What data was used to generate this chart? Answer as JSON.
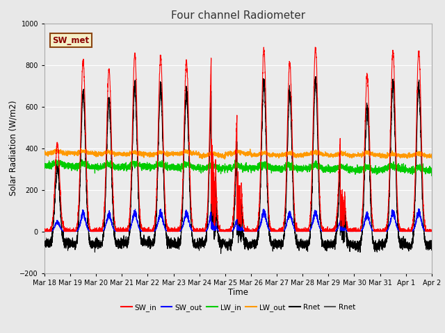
{
  "title": "Four channel Radiometer",
  "xlabel": "Time",
  "ylabel": "Solar Radiation (W/m2)",
  "ylim": [
    -200,
    1000
  ],
  "background_color": "#e8e8e8",
  "plot_bg_color": "#ebebeb",
  "legend_label": "SW_met",
  "legend_box_color": "#f5f0c8",
  "legend_box_edge": "#8B4513",
  "x_tick_labels": [
    "Mar 18",
    "Mar 19",
    "Mar 20",
    "Mar 21",
    "Mar 22",
    "Mar 23",
    "Mar 24",
    "Mar 25",
    "Mar 26",
    "Mar 27",
    "Mar 28",
    "Mar 29",
    "Mar 30",
    "Mar 31",
    "Apr 1",
    "Apr 2"
  ],
  "series_colors": {
    "SW_in": "#ff0000",
    "SW_out": "#0000ff",
    "LW_in": "#00cc00",
    "LW_out": "#ff9900",
    "Rnet1": "#000000",
    "Rnet2": "#555555"
  },
  "grid_color": "#ffffff",
  "yticks": [
    -200,
    0,
    200,
    400,
    600,
    800,
    1000
  ],
  "SW_in_peaks": [
    420,
    820,
    780,
    850,
    840,
    820,
    930,
    620,
    870,
    810,
    880,
    490,
    750,
    870,
    870
  ],
  "n_days": 15,
  "pts_per_day": 288
}
